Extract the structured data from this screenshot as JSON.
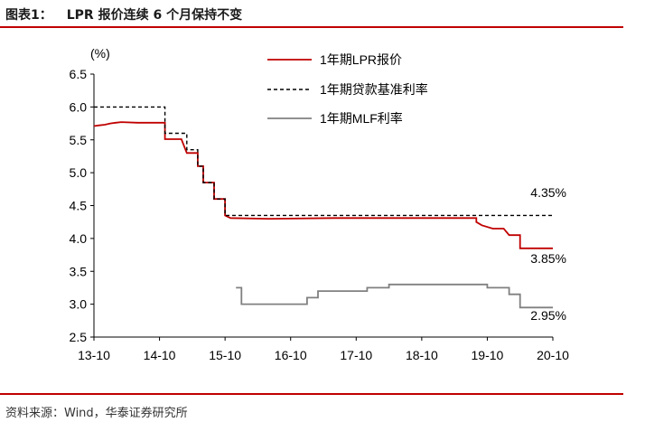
{
  "header": {
    "figure_label": "图表1：",
    "figure_title": "LPR 报价连续 6 个月保持不变"
  },
  "footer": {
    "source": "资料来源：Wind，华泰证券研究所"
  },
  "colors": {
    "accent_rule": "#c00000",
    "lpr": "#c00000",
    "benchmark": "#000000",
    "mlf": "#808080"
  },
  "chart_data": {
    "type": "line",
    "title": "",
    "xlabel": "",
    "ylabel": "(%)",
    "ylim": [
      2.5,
      6.5
    ],
    "yticks": [
      "6.5",
      "6.0",
      "5.5",
      "5.0",
      "4.5",
      "4.0",
      "3.5",
      "3.0",
      "2.5"
    ],
    "xticks": [
      "13-10",
      "14-10",
      "15-10",
      "16-10",
      "17-10",
      "18-10",
      "19-10",
      "20-10"
    ],
    "grid": false,
    "legend_position": "top-right",
    "series": [
      {
        "name": "1年期LPR报价",
        "color": "#c00000",
        "style": "solid",
        "points": [
          [
            "2013-10",
            5.71
          ],
          [
            "2013-11",
            5.72
          ],
          [
            "2013-12",
            5.73
          ],
          [
            "2014-01",
            5.75
          ],
          [
            "2014-02",
            5.76
          ],
          [
            "2014-03",
            5.77
          ],
          [
            "2014-06",
            5.76
          ],
          [
            "2014-11",
            5.76
          ],
          [
            "2014-11",
            5.51
          ],
          [
            "2015-02",
            5.51
          ],
          [
            "2015-03",
            5.3
          ],
          [
            "2015-05",
            5.3
          ],
          [
            "2015-05",
            5.1
          ],
          [
            "2015-06",
            5.1
          ],
          [
            "2015-06",
            4.85
          ],
          [
            "2015-08",
            4.85
          ],
          [
            "2015-08",
            4.6
          ],
          [
            "2015-10",
            4.6
          ],
          [
            "2015-10",
            4.35
          ],
          [
            "2015-11",
            4.31
          ],
          [
            "2016-06",
            4.3
          ],
          [
            "2017-06",
            4.31
          ],
          [
            "2018-06",
            4.31
          ],
          [
            "2019-06",
            4.31
          ],
          [
            "2019-08",
            4.31
          ],
          [
            "2019-08",
            4.25
          ],
          [
            "2019-09",
            4.2
          ],
          [
            "2019-11",
            4.15
          ],
          [
            "2020-01",
            4.15
          ],
          [
            "2020-02",
            4.05
          ],
          [
            "2020-04",
            4.05
          ],
          [
            "2020-04",
            3.85
          ],
          [
            "2020-10",
            3.85
          ]
        ]
      },
      {
        "name": "1年期贷款基准利率",
        "color": "#000000",
        "style": "dashed",
        "points": [
          [
            "2013-10",
            6.0
          ],
          [
            "2014-11",
            6.0
          ],
          [
            "2014-11",
            5.6
          ],
          [
            "2015-03",
            5.6
          ],
          [
            "2015-03",
            5.35
          ],
          [
            "2015-05",
            5.35
          ],
          [
            "2015-05",
            5.1
          ],
          [
            "2015-06",
            5.1
          ],
          [
            "2015-06",
            4.85
          ],
          [
            "2015-08",
            4.85
          ],
          [
            "2015-08",
            4.6
          ],
          [
            "2015-10",
            4.6
          ],
          [
            "2015-10",
            4.35
          ],
          [
            "2020-10",
            4.35
          ]
        ]
      },
      {
        "name": "1年期MLF利率",
        "color": "#808080",
        "style": "solid",
        "points": [
          [
            "2015-12",
            3.25
          ],
          [
            "2016-01",
            3.25
          ],
          [
            "2016-01",
            3.0
          ],
          [
            "2017-01",
            3.0
          ],
          [
            "2017-01",
            3.1
          ],
          [
            "2017-03",
            3.1
          ],
          [
            "2017-03",
            3.2
          ],
          [
            "2017-12",
            3.2
          ],
          [
            "2017-12",
            3.25
          ],
          [
            "2018-04",
            3.25
          ],
          [
            "2018-04",
            3.3
          ],
          [
            "2019-10",
            3.3
          ],
          [
            "2019-10",
            3.25
          ],
          [
            "2020-02",
            3.25
          ],
          [
            "2020-02",
            3.15
          ],
          [
            "2020-04",
            3.15
          ],
          [
            "2020-04",
            2.95
          ],
          [
            "2020-10",
            2.95
          ]
        ]
      }
    ],
    "annotations": [
      "4.35%",
      "3.85%",
      "2.95%"
    ]
  }
}
